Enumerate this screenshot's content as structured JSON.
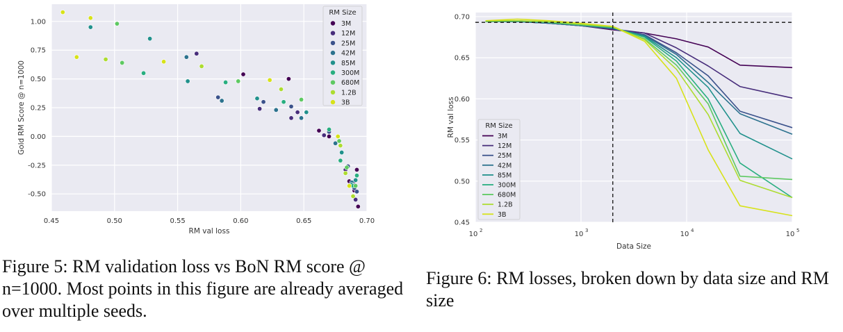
{
  "fig5": {
    "caption": "Figure 5: RM validation loss vs BoN RM score @ n=1000. Most points in this figure are already averaged over multiple seeds.",
    "chart_data": {
      "type": "scatter",
      "xlabel": "RM val loss",
      "ylabel": "Gold RM Score @ n=1000",
      "xlim": [
        0.45,
        0.7
      ],
      "ylim": [
        -0.65,
        1.15
      ],
      "xticks": [
        "0.45",
        "0.50",
        "0.55",
        "0.60",
        "0.65",
        "0.70"
      ],
      "xtick_values": [
        0.45,
        0.5,
        0.55,
        0.6,
        0.65,
        0.7
      ],
      "yticks": [
        "1.00",
        "0.75",
        "0.50",
        "0.25",
        "0.00",
        "-0.25",
        "-0.50"
      ],
      "ytick_values": [
        1.0,
        0.75,
        0.5,
        0.25,
        0.0,
        -0.25,
        -0.5
      ],
      "grid": true,
      "legend_title": "RM Size",
      "legend_position": "top-right",
      "series": [
        {
          "name": "3M",
          "color": "#440154",
          "points": [
            [
              0.602,
              0.54
            ],
            [
              0.638,
              0.5
            ],
            [
              0.662,
              0.05
            ],
            [
              0.67,
              0.0
            ],
            [
              0.686,
              -0.39
            ],
            [
              0.69,
              -0.47
            ],
            [
              0.692,
              -0.29
            ],
            [
              0.693,
              -0.61
            ]
          ]
        },
        {
          "name": "12M",
          "color": "#472d7b",
          "points": [
            [
              0.565,
              0.72
            ],
            [
              0.615,
              0.24
            ],
            [
              0.64,
              0.16
            ],
            [
              0.645,
              0.21
            ],
            [
              0.666,
              0.01
            ],
            [
              0.683,
              -0.29
            ],
            [
              0.689,
              -0.4
            ],
            [
              0.691,
              -0.55
            ]
          ]
        },
        {
          "name": "25M",
          "color": "#3b528b",
          "points": [
            [
              0.582,
              0.34
            ],
            [
              0.618,
              0.3
            ],
            [
              0.64,
              0.26
            ],
            [
              0.67,
              0.04
            ],
            [
              0.685,
              -0.26
            ],
            [
              0.69,
              -0.45
            ],
            [
              0.692,
              -0.48
            ]
          ]
        },
        {
          "name": "42M",
          "color": "#2c728e",
          "points": [
            [
              0.557,
              0.69
            ],
            [
              0.585,
              0.31
            ],
            [
              0.628,
              0.23
            ],
            [
              0.648,
              0.16
            ],
            [
              0.675,
              -0.06
            ],
            [
              0.688,
              -0.4
            ]
          ]
        },
        {
          "name": "85M",
          "color": "#21918c",
          "points": [
            [
              0.481,
              0.95
            ],
            [
              0.528,
              0.85
            ],
            [
              0.558,
              0.48
            ],
            [
              0.613,
              0.33
            ],
            [
              0.652,
              0.21
            ],
            [
              0.68,
              -0.14
            ],
            [
              0.688,
              -0.42
            ],
            [
              0.691,
              -0.38
            ]
          ]
        },
        {
          "name": "300M",
          "color": "#28ae80",
          "points": [
            [
              0.523,
              0.55
            ],
            [
              0.588,
              0.47
            ],
            [
              0.634,
              0.3
            ],
            [
              0.67,
              0.06
            ],
            [
              0.679,
              -0.21
            ],
            [
              0.689,
              -0.43
            ],
            [
              0.692,
              -0.34
            ]
          ]
        },
        {
          "name": "680M",
          "color": "#5ec962",
          "points": [
            [
              0.502,
              0.98
            ],
            [
              0.506,
              0.64
            ],
            [
              0.598,
              0.48
            ],
            [
              0.648,
              0.32
            ],
            [
              0.678,
              -0.04
            ],
            [
              0.684,
              -0.27
            ],
            [
              0.691,
              -0.43
            ]
          ]
        },
        {
          "name": "1.2B",
          "color": "#addc30",
          "points": [
            [
              0.493,
              0.67
            ],
            [
              0.569,
              0.61
            ],
            [
              0.632,
              0.41
            ],
            [
              0.679,
              -0.08
            ],
            [
              0.683,
              -0.32
            ],
            [
              0.689,
              -0.52
            ]
          ]
        },
        {
          "name": "3B",
          "color": "#d7e219",
          "points": [
            [
              0.459,
              1.08
            ],
            [
              0.47,
              0.69
            ],
            [
              0.481,
              1.03
            ],
            [
              0.539,
              0.65
            ],
            [
              0.623,
              0.49
            ],
            [
              0.677,
              0.0
            ],
            [
              0.686,
              -0.43
            ]
          ]
        }
      ]
    }
  },
  "fig6": {
    "caption": "Figure 6: RM losses, broken down by data size and RM size",
    "chart_data": {
      "type": "line",
      "xlabel": "Data Size",
      "ylabel": "RM val loss",
      "xscale": "log",
      "xlim": [
        100,
        100000
      ],
      "ylim": [
        0.45,
        0.705
      ],
      "xticks": [
        "10",
        "10",
        "10",
        "10"
      ],
      "xtick_exponents": [
        "2",
        "3",
        "4",
        "5"
      ],
      "xtick_values": [
        100,
        1000,
        10000,
        100000
      ],
      "yticks": [
        "0.70",
        "0.65",
        "0.60",
        "0.55",
        "0.50",
        "0.45"
      ],
      "ytick_values": [
        0.7,
        0.65,
        0.6,
        0.55,
        0.5,
        0.45
      ],
      "grid": true,
      "legend_title": "RM Size",
      "legend_position": "lower-left",
      "reference_lines": {
        "vertical_x": 2000,
        "horizontal_y": 0.693
      },
      "x": [
        125,
        250,
        500,
        1000,
        2000,
        4000,
        8000,
        16000,
        32000,
        100000
      ],
      "series": [
        {
          "name": "3M",
          "color": "#440154",
          "values": [
            0.694,
            0.694,
            0.692,
            0.689,
            0.684,
            0.68,
            0.673,
            0.663,
            0.641,
            0.638
          ]
        },
        {
          "name": "12M",
          "color": "#472d7b",
          "values": [
            0.694,
            0.694,
            0.692,
            0.689,
            0.685,
            0.68,
            0.662,
            0.64,
            0.615,
            0.601
          ]
        },
        {
          "name": "25M",
          "color": "#3b528b",
          "values": [
            0.694,
            0.694,
            0.692,
            0.689,
            0.685,
            0.678,
            0.656,
            0.628,
            0.585,
            0.565
          ]
        },
        {
          "name": "42M",
          "color": "#2c728e",
          "values": [
            0.694,
            0.694,
            0.692,
            0.689,
            0.686,
            0.677,
            0.654,
            0.62,
            0.582,
            0.557
          ]
        },
        {
          "name": "85M",
          "color": "#21918c",
          "values": [
            0.694,
            0.694,
            0.693,
            0.69,
            0.686,
            0.676,
            0.65,
            0.614,
            0.558,
            0.527
          ]
        },
        {
          "name": "300M",
          "color": "#28ae80",
          "values": [
            0.694,
            0.695,
            0.693,
            0.69,
            0.687,
            0.675,
            0.646,
            0.6,
            0.522,
            0.48
          ]
        },
        {
          "name": "680M",
          "color": "#5ec962",
          "values": [
            0.694,
            0.695,
            0.693,
            0.69,
            0.687,
            0.673,
            0.641,
            0.594,
            0.506,
            0.502
          ]
        },
        {
          "name": "1.2B",
          "color": "#addc30",
          "values": [
            0.695,
            0.695,
            0.694,
            0.691,
            0.688,
            0.672,
            0.636,
            0.581,
            0.501,
            0.48
          ]
        },
        {
          "name": "3B",
          "color": "#d7e219",
          "values": [
            0.695,
            0.697,
            0.695,
            0.692,
            0.688,
            0.67,
            0.625,
            0.538,
            0.47,
            0.458
          ]
        }
      ]
    }
  }
}
